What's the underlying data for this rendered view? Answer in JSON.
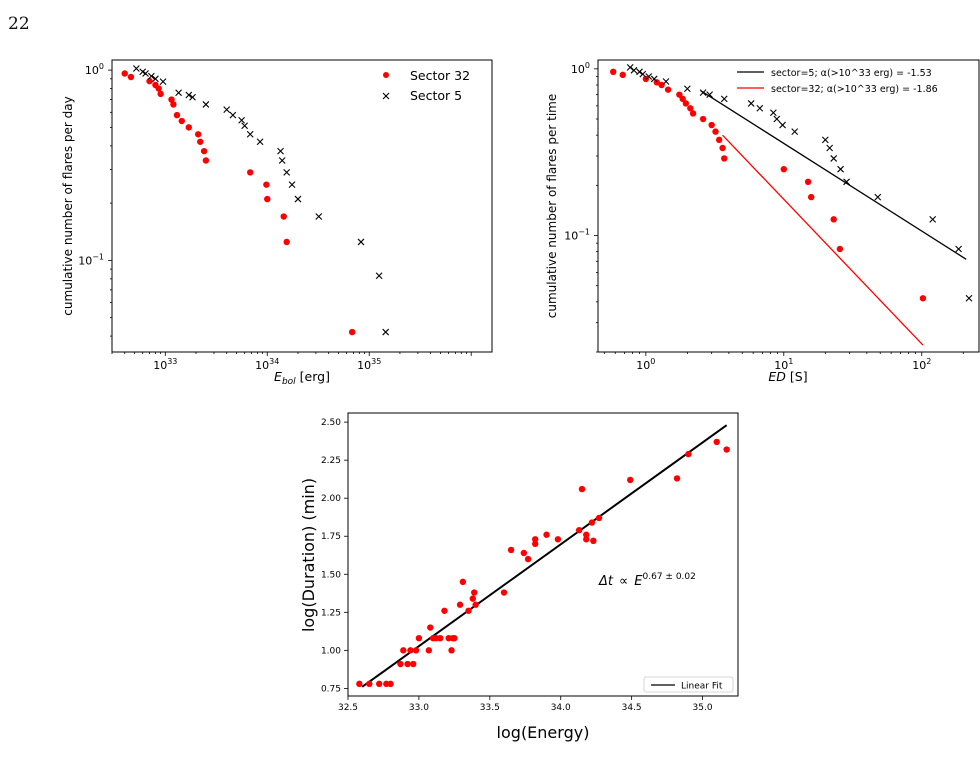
{
  "page_number": "22",
  "chart_data": [
    {
      "id": "energy-cdf",
      "type": "scatter",
      "xscale": "log",
      "yscale": "log",
      "xlim": [
        300000000000000000000000000000000,
        1600000000000000000000000000000000000
      ],
      "ylim": [
        0.033,
        1.13
      ],
      "xlabel_main": "E",
      "xlabel_sub": "bol",
      "xlabel_unit": " [erg]",
      "ylabel": "cumulative number of flares per day",
      "xticks": [
        {
          "value": 1e+33,
          "base": "10",
          "exp": "33"
        },
        {
          "value": 1e+34,
          "base": "10",
          "exp": "34"
        },
        {
          "value": 1e+35,
          "base": "10",
          "exp": "35"
        }
      ],
      "yticks": [
        {
          "value": 1,
          "base": "10",
          "exp": "0"
        },
        {
          "value": 0.1,
          "base": "10",
          "exp": "−1"
        }
      ],
      "legend": {
        "placement": "top-right",
        "entries": [
          {
            "label": "Sector 32",
            "marker": "dot",
            "color": "#ff0000"
          },
          {
            "label": "Sector 5",
            "marker": "x",
            "color": "#000000"
          }
        ]
      },
      "series": [
        {
          "name": "Sector 32",
          "marker": "dot",
          "color": "#ff0000",
          "x": [
            4e+32,
            4.6e+32,
            7e+32,
            8e+32,
            8.6e+32,
            9e+32,
            1.15e+33,
            1.2e+33,
            1.3e+33,
            1.45e+33,
            1.7e+33,
            2.1e+33,
            2.2e+33,
            2.4e+33,
            2.5e+33,
            6.8e+33,
            9.8e+33,
            1e+34,
            1.45e+34,
            1.55e+34,
            6.8e+34
          ],
          "y": [
            0.96,
            0.92,
            0.875,
            0.835,
            0.8,
            0.75,
            0.7,
            0.66,
            0.58,
            0.54,
            0.5,
            0.46,
            0.42,
            0.375,
            0.335,
            0.29,
            0.25,
            0.21,
            0.17,
            0.125,
            0.042
          ]
        },
        {
          "name": "Sector 5",
          "marker": "x",
          "color": "#000000",
          "x": [
            5.2e+32,
            6e+32,
            6.4e+32,
            7.3e+32,
            8e+32,
            9.5e+32,
            1.35e+33,
            1.7e+33,
            1.85e+33,
            2.5e+33,
            4e+33,
            4.6e+33,
            5.6e+33,
            6e+33,
            6.8e+33,
            8.5e+33,
            1.35e+34,
            1.4e+34,
            1.55e+34,
            1.75e+34,
            2e+34,
            3.2e+34,
            8.3e+34,
            1.25e+35,
            1.45e+35
          ],
          "y": [
            1.02,
            0.98,
            0.96,
            0.93,
            0.9,
            0.87,
            0.76,
            0.74,
            0.72,
            0.66,
            0.62,
            0.58,
            0.545,
            0.51,
            0.46,
            0.42,
            0.375,
            0.335,
            0.29,
            0.25,
            0.21,
            0.17,
            0.125,
            0.083,
            0.042
          ]
        }
      ]
    },
    {
      "id": "ed-cdf",
      "type": "scatter",
      "xscale": "log",
      "yscale": "log",
      "xlim": [
        0.45,
        260
      ],
      "ylim": [
        0.02,
        1.13
      ],
      "xlabel_main": "ED",
      "xlabel_unit": " [S]",
      "ylabel": "cumulative number of flares per time",
      "xticks": [
        {
          "value": 1,
          "base": "10",
          "exp": "0"
        },
        {
          "value": 10,
          "base": "10",
          "exp": "1"
        },
        {
          "value": 100,
          "base": "10",
          "exp": "2"
        }
      ],
      "yticks": [
        {
          "value": 1,
          "base": "10",
          "exp": "0"
        },
        {
          "value": 0.1,
          "base": "10",
          "exp": "−1"
        }
      ],
      "legend": {
        "placement": "top-right",
        "entries": [
          {
            "label": "sector=5; α(>10^33 erg) = -1.53",
            "color": "#000000"
          },
          {
            "label": "sector=32; α(>10^33 erg) = -1.86",
            "color": "#ff0000"
          }
        ]
      },
      "lines": [
        {
          "name": "sector=5; α(>10^33 erg) = -1.53",
          "color": "#000000",
          "x": [
            2.5,
            210
          ],
          "y": [
            0.74,
            0.072
          ]
        },
        {
          "name": "sector=32; α(>10^33 erg) = -1.86",
          "color": "#ff0000",
          "x": [
            3.6,
            102
          ],
          "y": [
            0.4,
            0.022
          ]
        }
      ],
      "series": [
        {
          "name": "sector=32",
          "marker": "dot",
          "color": "#ff0000",
          "x": [
            0.58,
            0.68,
            1.0,
            1.2,
            1.3,
            1.45,
            1.75,
            1.85,
            1.95,
            2.1,
            2.2,
            2.6,
            3.0,
            3.2,
            3.4,
            3.6,
            3.7,
            10.0,
            15.0,
            15.8,
            23.0,
            25.5,
            102
          ],
          "y": [
            0.96,
            0.92,
            0.87,
            0.83,
            0.8,
            0.75,
            0.7,
            0.66,
            0.62,
            0.58,
            0.54,
            0.5,
            0.46,
            0.42,
            0.375,
            0.335,
            0.29,
            0.25,
            0.21,
            0.17,
            0.125,
            0.083,
            0.042
          ]
        },
        {
          "name": "sector=5",
          "marker": "x",
          "color": "#000000",
          "x": [
            0.77,
            0.82,
            0.9,
            0.95,
            1.05,
            1.15,
            1.4,
            2.0,
            2.6,
            2.9,
            3.7,
            5.8,
            6.7,
            8.4,
            8.9,
            9.8,
            12.0,
            20.0,
            21.5,
            23.0,
            25.8,
            28.5,
            48.0,
            120,
            185,
            220
          ],
          "y": [
            1.02,
            0.98,
            0.96,
            0.93,
            0.9,
            0.87,
            0.84,
            0.76,
            0.72,
            0.7,
            0.66,
            0.62,
            0.58,
            0.545,
            0.5,
            0.46,
            0.42,
            0.375,
            0.335,
            0.29,
            0.25,
            0.21,
            0.17,
            0.125,
            0.083,
            0.042
          ]
        }
      ]
    },
    {
      "id": "duration-energy",
      "type": "scatter",
      "xscale": "linear",
      "yscale": "linear",
      "xlim": [
        32.5,
        35.25
      ],
      "ylim": [
        0.7,
        2.56
      ],
      "xlabel": "log(Energy)",
      "ylabel": "log(Duration) (min)",
      "xticks": [
        "32.5",
        "33.0",
        "33.5",
        "34.0",
        "34.5",
        "35.0"
      ],
      "yticks": [
        "0.75",
        "1.00",
        "1.25",
        "1.50",
        "1.75",
        "2.00",
        "2.25",
        "2.50"
      ],
      "annotation": {
        "prefix": "Δt",
        "symbol": "∝",
        "base": "E",
        "exponent": "0.67 ± 0.02",
        "x": 34.3,
        "y": 1.45
      },
      "legend": {
        "placement": "lower-right",
        "entries": [
          {
            "label": "Linear Fit",
            "color": "#000000"
          }
        ]
      },
      "fit": {
        "name": "Linear Fit",
        "color": "#000000",
        "x": [
          32.6,
          35.17
        ],
        "y": [
          0.76,
          2.48
        ]
      },
      "series": [
        {
          "name": "data",
          "marker": "dot",
          "color": "#ff0000",
          "x": [
            32.58,
            32.65,
            32.72,
            32.77,
            32.8,
            32.87,
            32.89,
            32.92,
            32.94,
            32.96,
            32.98,
            33.0,
            33.07,
            33.08,
            33.1,
            33.12,
            33.15,
            33.18,
            33.21,
            33.23,
            33.24,
            33.25,
            33.29,
            33.31,
            33.35,
            33.38,
            33.39,
            33.4,
            33.6,
            33.65,
            33.74,
            33.77,
            33.82,
            33.82,
            33.9,
            33.98,
            34.13,
            34.15,
            34.18,
            34.18,
            34.22,
            34.23,
            34.27,
            34.49,
            34.82,
            34.9,
            35.1,
            35.17
          ],
          "y": [
            0.78,
            0.78,
            0.78,
            0.78,
            0.78,
            0.91,
            1.0,
            0.91,
            1.0,
            0.91,
            1.0,
            1.08,
            1.0,
            1.15,
            1.08,
            1.08,
            1.08,
            1.26,
            1.08,
            1.0,
            1.08,
            1.08,
            1.3,
            1.45,
            1.26,
            1.34,
            1.38,
            1.3,
            1.38,
            1.66,
            1.64,
            1.6,
            1.7,
            1.73,
            1.76,
            1.73,
            1.79,
            2.06,
            1.73,
            1.76,
            1.84,
            1.72,
            1.87,
            2.12,
            2.13,
            2.29,
            2.37,
            2.32
          ]
        }
      ]
    }
  ]
}
